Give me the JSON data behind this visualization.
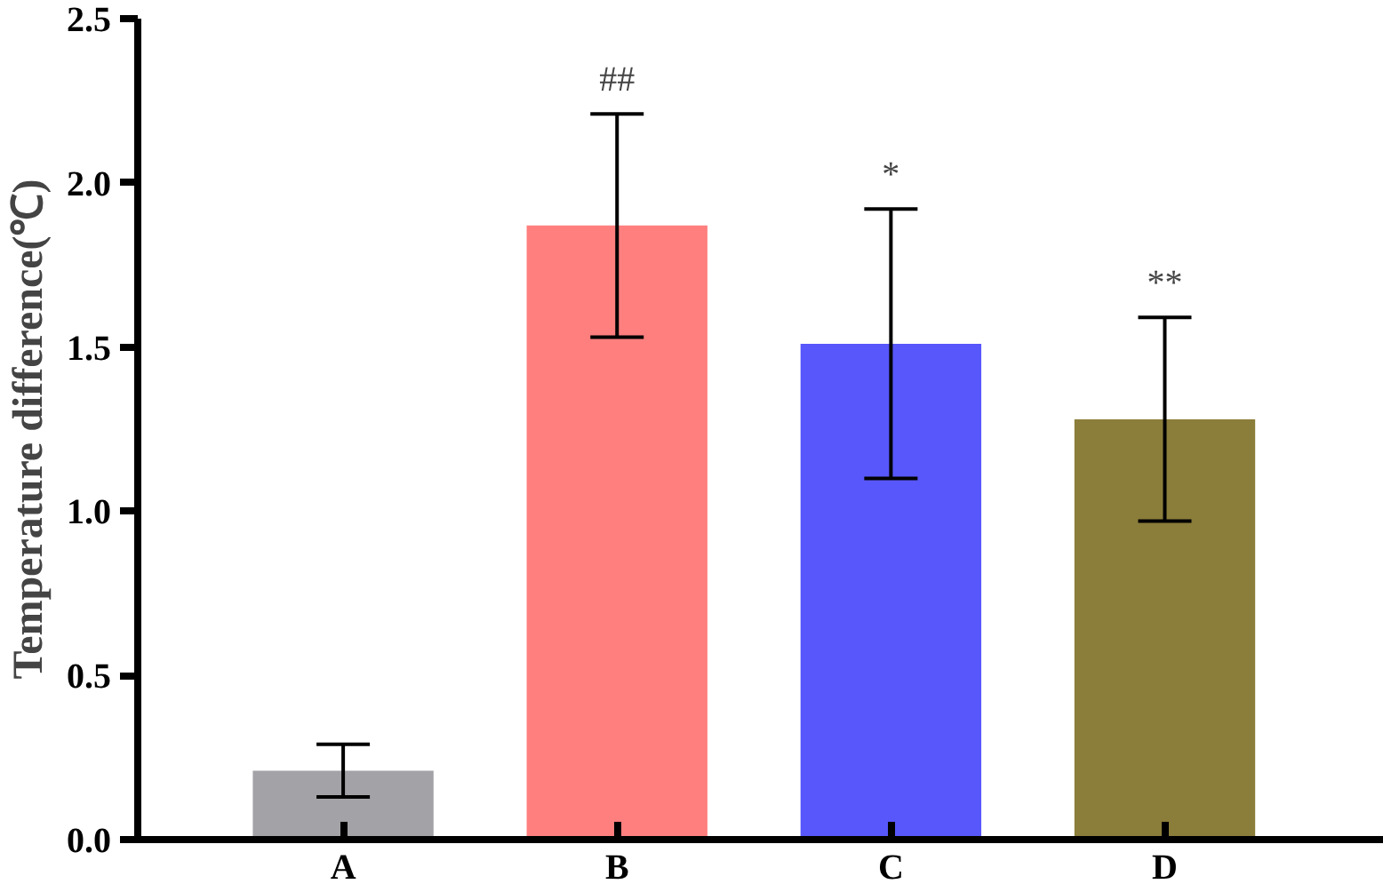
{
  "chart_data": {
    "type": "bar",
    "ylabel": "Temperature difference(℃)",
    "categories": [
      "A",
      "B",
      "C",
      "D"
    ],
    "values": [
      0.21,
      1.87,
      1.51,
      1.28
    ],
    "errors": [
      0.08,
      0.34,
      0.41,
      0.31
    ],
    "colors": [
      "#a3a2a7",
      "#ff7f7f",
      "#5757fb",
      "#8b7d3a"
    ],
    "ylim": [
      0,
      2.5
    ],
    "yticks": [
      {
        "value": 0,
        "label": "0.0"
      },
      {
        "value": 0.5,
        "label": "0.5"
      },
      {
        "value": 1,
        "label": "1.0"
      },
      {
        "value": 1.5,
        "label": "1.5"
      },
      {
        "value": 2,
        "label": "2.0"
      },
      {
        "value": 2.5,
        "label": "2.5"
      }
    ],
    "grid": false,
    "annotations": [
      {
        "text": "##",
        "x": "B",
        "y": 2.21
      },
      {
        "text": "*",
        "x": "C",
        "y": 1.92
      },
      {
        "text": "**",
        "x": "D",
        "y": 1.59
      }
    ]
  }
}
